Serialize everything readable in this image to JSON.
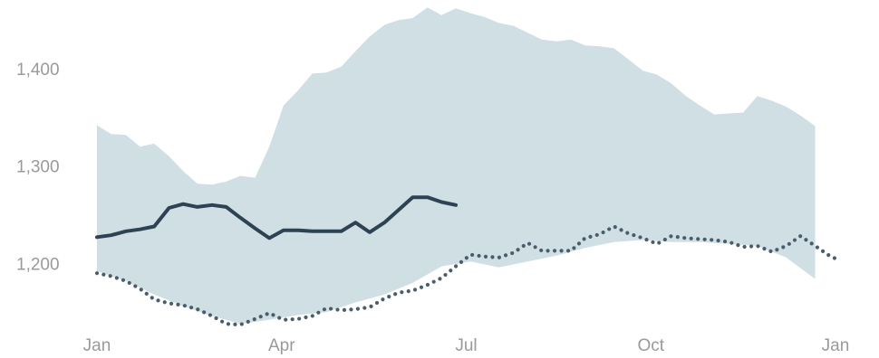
{
  "chart_data": {
    "type": "area",
    "title": "",
    "xlabel": "",
    "ylabel": "",
    "ylim": [
      1140,
      1465
    ],
    "xlim": [
      0,
      12
    ],
    "x_ticks": [
      {
        "x": 0,
        "label": "Jan"
      },
      {
        "x": 3,
        "label": "Apr"
      },
      {
        "x": 6,
        "label": "Jul"
      },
      {
        "x": 9,
        "label": "Oct"
      },
      {
        "x": 12,
        "label": "Jan"
      }
    ],
    "y_ticks": [
      {
        "y": 1200,
        "label": "1,200"
      },
      {
        "y": 1300,
        "label": "1,300"
      },
      {
        "y": 1400,
        "label": "1,400"
      }
    ],
    "colors": {
      "band": "#d0dfe4",
      "current": "#2d4252",
      "baseline": "#4a5d6b",
      "tick_text": "#9a9a9a"
    },
    "series": [
      {
        "style": "band",
        "upper": [
          [
            0,
            1342
          ],
          [
            0.23,
            1333
          ],
          [
            0.47,
            1332
          ],
          [
            0.7,
            1320
          ],
          [
            0.93,
            1323
          ],
          [
            1.17,
            1310
          ],
          [
            1.4,
            1295
          ],
          [
            1.63,
            1282
          ],
          [
            1.87,
            1281
          ],
          [
            2.1,
            1284
          ],
          [
            2.33,
            1290
          ],
          [
            2.57,
            1288
          ],
          [
            2.8,
            1320
          ],
          [
            3.03,
            1362
          ],
          [
            3.27,
            1378
          ],
          [
            3.5,
            1395
          ],
          [
            3.73,
            1396
          ],
          [
            3.97,
            1402
          ],
          [
            4.2,
            1418
          ],
          [
            4.43,
            1433
          ],
          [
            4.67,
            1445
          ],
          [
            4.9,
            1450
          ],
          [
            5.13,
            1452
          ],
          [
            5.37,
            1463
          ],
          [
            5.6,
            1455
          ],
          [
            5.83,
            1462
          ],
          [
            6.07,
            1457
          ],
          [
            6.3,
            1453
          ],
          [
            6.53,
            1447
          ],
          [
            6.77,
            1444
          ],
          [
            7.0,
            1437
          ],
          [
            7.23,
            1430
          ],
          [
            7.47,
            1428
          ],
          [
            7.7,
            1430
          ],
          [
            7.93,
            1424
          ],
          [
            8.17,
            1423
          ],
          [
            8.4,
            1421
          ],
          [
            8.63,
            1410
          ],
          [
            8.87,
            1398
          ],
          [
            9.1,
            1394
          ],
          [
            9.33,
            1385
          ],
          [
            9.57,
            1372
          ],
          [
            9.8,
            1362
          ],
          [
            10.03,
            1353
          ],
          [
            10.27,
            1354
          ],
          [
            10.5,
            1355
          ],
          [
            10.73,
            1372
          ],
          [
            10.97,
            1367
          ],
          [
            11.2,
            1361
          ],
          [
            11.43,
            1352
          ],
          [
            11.67,
            1341
          ]
        ],
        "lower": [
          [
            0,
            1192
          ],
          [
            0.47,
            1182
          ],
          [
            0.93,
            1168
          ],
          [
            1.4,
            1156
          ],
          [
            1.87,
            1146
          ],
          [
            2.33,
            1138
          ],
          [
            2.8,
            1142
          ],
          [
            3.27,
            1147
          ],
          [
            3.73,
            1150
          ],
          [
            4.2,
            1160
          ],
          [
            4.67,
            1168
          ],
          [
            5.13,
            1180
          ],
          [
            5.6,
            1197
          ],
          [
            6.07,
            1202
          ],
          [
            6.53,
            1196
          ],
          [
            7.0,
            1202
          ],
          [
            7.47,
            1208
          ],
          [
            7.93,
            1216
          ],
          [
            8.4,
            1222
          ],
          [
            8.87,
            1224
          ],
          [
            9.33,
            1222
          ],
          [
            9.8,
            1222
          ],
          [
            10.27,
            1220
          ],
          [
            10.73,
            1218
          ],
          [
            11.2,
            1206
          ],
          [
            11.67,
            1184
          ]
        ]
      },
      {
        "style": "solid",
        "points": [
          [
            0,
            1227
          ],
          [
            0.23,
            1229
          ],
          [
            0.47,
            1233
          ],
          [
            0.7,
            1235
          ],
          [
            0.93,
            1238
          ],
          [
            1.17,
            1257
          ],
          [
            1.4,
            1261
          ],
          [
            1.63,
            1258
          ],
          [
            1.87,
            1260
          ],
          [
            2.1,
            1258
          ],
          [
            2.33,
            1247
          ],
          [
            2.57,
            1236
          ],
          [
            2.8,
            1226
          ],
          [
            3.03,
            1234
          ],
          [
            3.27,
            1234
          ],
          [
            3.5,
            1233
          ],
          [
            3.73,
            1233
          ],
          [
            3.97,
            1233
          ],
          [
            4.2,
            1242
          ],
          [
            4.43,
            1232
          ],
          [
            4.67,
            1242
          ],
          [
            4.9,
            1255
          ],
          [
            5.13,
            1268
          ],
          [
            5.37,
            1268
          ],
          [
            5.6,
            1263
          ],
          [
            5.83,
            1260
          ]
        ]
      },
      {
        "style": "dotted",
        "points": [
          [
            0,
            1190
          ],
          [
            0.23,
            1187
          ],
          [
            0.47,
            1182
          ],
          [
            0.7,
            1174
          ],
          [
            0.93,
            1163
          ],
          [
            1.17,
            1159
          ],
          [
            1.4,
            1157
          ],
          [
            1.63,
            1153
          ],
          [
            1.87,
            1146
          ],
          [
            2.1,
            1138
          ],
          [
            2.33,
            1137
          ],
          [
            2.57,
            1143
          ],
          [
            2.8,
            1149
          ],
          [
            3.03,
            1142
          ],
          [
            3.27,
            1143
          ],
          [
            3.5,
            1146
          ],
          [
            3.73,
            1154
          ],
          [
            3.97,
            1152
          ],
          [
            4.2,
            1153
          ],
          [
            4.43,
            1155
          ],
          [
            4.67,
            1164
          ],
          [
            4.9,
            1170
          ],
          [
            5.13,
            1172
          ],
          [
            5.37,
            1178
          ],
          [
            5.6,
            1185
          ],
          [
            5.83,
            1197
          ],
          [
            6.07,
            1209
          ],
          [
            6.3,
            1207
          ],
          [
            6.53,
            1206
          ],
          [
            6.77,
            1211
          ],
          [
            7.0,
            1221
          ],
          [
            7.23,
            1213
          ],
          [
            7.47,
            1213
          ],
          [
            7.7,
            1213
          ],
          [
            7.93,
            1226
          ],
          [
            8.17,
            1230
          ],
          [
            8.4,
            1238
          ],
          [
            8.63,
            1231
          ],
          [
            8.87,
            1226
          ],
          [
            9.1,
            1220
          ],
          [
            9.33,
            1228
          ],
          [
            9.57,
            1226
          ],
          [
            9.8,
            1225
          ],
          [
            10.03,
            1224
          ],
          [
            10.27,
            1222
          ],
          [
            10.5,
            1217
          ],
          [
            10.73,
            1218
          ],
          [
            10.97,
            1212
          ],
          [
            11.2,
            1218
          ],
          [
            11.43,
            1228
          ],
          [
            11.67,
            1218
          ],
          [
            11.9,
            1208
          ],
          [
            12.0,
            1205
          ]
        ]
      }
    ]
  }
}
